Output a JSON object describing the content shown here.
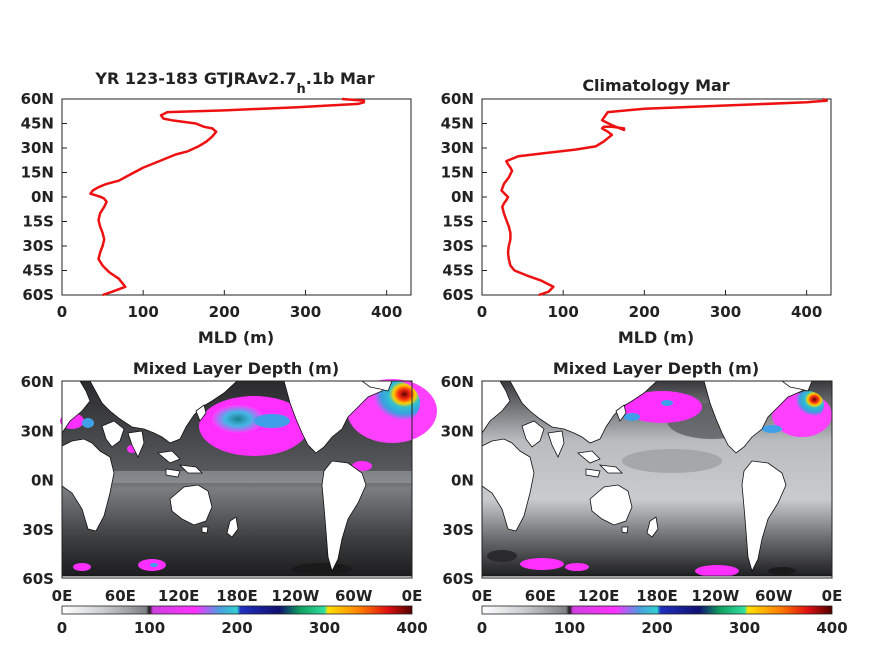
{
  "colors": {
    "profile_line": "#ee1111",
    "axis": "#222222",
    "land": "#ffffff"
  },
  "chart_data": [
    {
      "type": "line",
      "title_main": "YR 123-183 GTJRAv2.7",
      "title_sub": "h",
      "title_tail": ".1b Mar",
      "xlabel": "MLD (m)",
      "ylabel": "",
      "xlim": [
        0,
        430
      ],
      "ylim": [
        -60,
        60
      ],
      "xticks": [
        "0",
        "100",
        "200",
        "300",
        "400"
      ],
      "yticks": [
        "60N",
        "45N",
        "30N",
        "15N",
        "0N",
        "15S",
        "30S",
        "45S",
        "60S"
      ],
      "series": [
        {
          "x": [
            50,
            62,
            78,
            70,
            58,
            50,
            45,
            47,
            50,
            52,
            50,
            47,
            45,
            47,
            52,
            55,
            52,
            48,
            42,
            35,
            38,
            45,
            55,
            70,
            85,
            100,
            120,
            140,
            155,
            168,
            178,
            185,
            190,
            185,
            175,
            165,
            150,
            135,
            125,
            122,
            130,
            200,
            290,
            365,
            372,
            372,
            345
          ],
          "y": [
            -60,
            -58,
            -55,
            -50,
            -46,
            -42,
            -38,
            -34,
            -30,
            -26,
            -22,
            -18,
            -14,
            -10,
            -6,
            -3,
            -1,
            0,
            1,
            2,
            4,
            6,
            8,
            10,
            14,
            18,
            22,
            26,
            28,
            31,
            34,
            37,
            40,
            42,
            43,
            45,
            46,
            47,
            48,
            50,
            52,
            53,
            55,
            57,
            58,
            59,
            60
          ]
        }
      ]
    },
    {
      "type": "line",
      "title_main": "Climatology Mar",
      "title_sub": "",
      "title_tail": "",
      "xlabel": "MLD (m)",
      "ylabel": "",
      "xlim": [
        0,
        430
      ],
      "ylim": [
        -60,
        60
      ],
      "xticks": [
        "0",
        "100",
        "200",
        "300",
        "400"
      ],
      "yticks": [
        "60N",
        "45N",
        "30N",
        "15N",
        "0N",
        "15S",
        "30S",
        "45S",
        "60S"
      ],
      "series": [
        {
          "x": [
            70,
            82,
            88,
            72,
            55,
            40,
            35,
            33,
            32,
            33,
            35,
            35,
            33,
            30,
            27,
            25,
            27,
            30,
            32,
            28,
            24,
            27,
            33,
            37,
            35,
            32,
            30,
            45,
            80,
            115,
            140,
            150,
            155,
            160,
            155,
            148,
            150,
            160,
            175,
            175,
            160,
            148,
            155,
            200,
            300,
            400,
            425,
            420
          ],
          "y": [
            -60,
            -58,
            -55,
            -51,
            -48,
            -45,
            -42,
            -38,
            -34,
            -30,
            -26,
            -22,
            -18,
            -14,
            -10,
            -6,
            -4,
            -2,
            0,
            2,
            4,
            8,
            12,
            16,
            18,
            20,
            22,
            25,
            27,
            29,
            31,
            34,
            36,
            38,
            40,
            42,
            43,
            43,
            42,
            41,
            44,
            47,
            52,
            54,
            56,
            58,
            59,
            60
          ]
        }
      ]
    },
    {
      "type": "heatmap",
      "title": "Mixed Layer Depth (m)",
      "yticks": [
        "60N",
        "30N",
        "0N",
        "30S",
        "60S"
      ],
      "xticks": [
        "0E",
        "60E",
        "120E",
        "180E",
        "120W",
        "60W",
        "0E"
      ],
      "colorbar_ticks": [
        "0",
        "100",
        "200",
        "300",
        "400"
      ],
      "colorbar_range": [
        0,
        400
      ]
    },
    {
      "type": "heatmap",
      "title": "Mixed Layer Depth (m)",
      "yticks": [
        "60N",
        "30N",
        "0N",
        "30S",
        "60S"
      ],
      "xticks": [
        "0E",
        "60E",
        "120E",
        "180E",
        "120W",
        "60W",
        "0E"
      ],
      "colorbar_ticks": [
        "0",
        "100",
        "200",
        "300",
        "400"
      ],
      "colorbar_range": [
        0,
        400
      ]
    }
  ]
}
